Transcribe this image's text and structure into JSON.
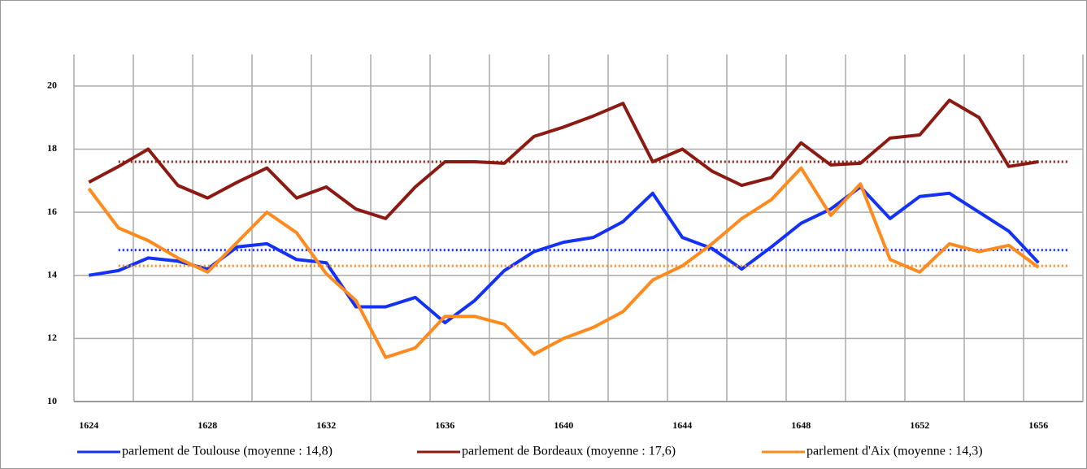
{
  "chart_data": {
    "type": "line",
    "categories": [
      "1624",
      null,
      null,
      null,
      "1628",
      null,
      null,
      null,
      "1632",
      null,
      null,
      null,
      "1636",
      null,
      null,
      null,
      "1640",
      null,
      null,
      null,
      "1644",
      null,
      null,
      null,
      "1648",
      null,
      null,
      null,
      "1652",
      null,
      null,
      null,
      "1656",
      null
    ],
    "series": [
      {
        "name": "parlement de Toulouse (moyenne : 14,8)",
        "color": "#1432f5",
        "mean": 14.8,
        "values": [
          14.0,
          14.15,
          14.55,
          14.45,
          14.2,
          14.9,
          15.0,
          14.5,
          14.4,
          13.0,
          13.0,
          13.3,
          12.5,
          13.2,
          14.15,
          14.75,
          15.05,
          15.2,
          15.7,
          16.6,
          15.2,
          14.85,
          14.2,
          14.9,
          15.65,
          16.1,
          16.8,
          15.8,
          16.5,
          16.6,
          16.0,
          15.4,
          14.4,
          null
        ]
      },
      {
        "name": "parlement de Bordeaux (moyenne : 17,6)",
        "color": "#8b1a12",
        "mean": 17.6,
        "values": [
          16.95,
          17.45,
          18.0,
          16.85,
          16.45,
          16.95,
          17.4,
          16.45,
          16.8,
          16.1,
          15.8,
          16.8,
          17.6,
          17.6,
          17.55,
          18.4,
          18.7,
          19.05,
          19.45,
          17.6,
          18.0,
          17.3,
          16.85,
          17.1,
          18.2,
          17.5,
          17.55,
          18.35,
          18.45,
          19.55,
          19.0,
          17.45,
          17.6,
          null
        ]
      },
      {
        "name": "parlement d'Aix (moyenne : 14,3)",
        "color": "#ff8a1e",
        "mean": 14.3,
        "values": [
          16.75,
          15.5,
          15.1,
          14.55,
          14.1,
          15.05,
          16.0,
          15.35,
          14.05,
          13.2,
          11.4,
          11.7,
          12.7,
          12.7,
          12.45,
          11.5,
          12.0,
          12.35,
          12.85,
          13.85,
          14.3,
          15.0,
          15.8,
          16.4,
          17.4,
          15.9,
          16.9,
          14.5,
          14.1,
          15.0,
          14.75,
          14.95,
          14.25,
          null
        ]
      }
    ],
    "ylim": [
      10,
      21
    ],
    "yticks": [
      10,
      12,
      14,
      16,
      18,
      20
    ],
    "grid": true
  }
}
